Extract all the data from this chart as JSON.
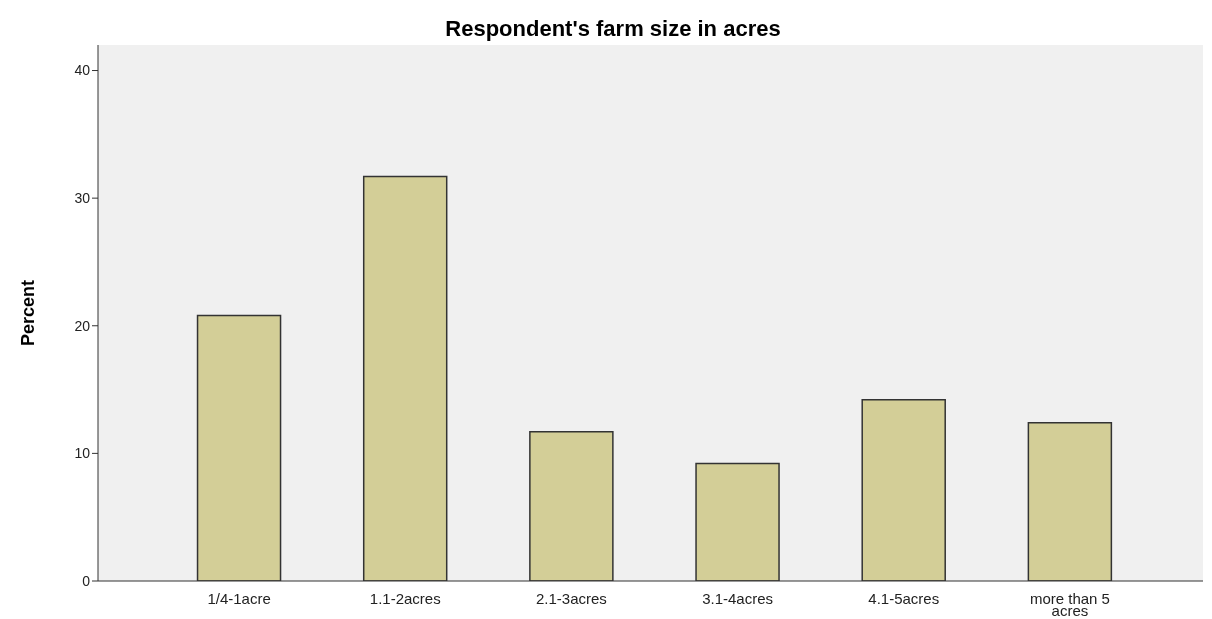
{
  "chart_data": {
    "type": "bar",
    "title": "Respondent's farm size in acres",
    "ylabel": "Percent",
    "categories": [
      "1/4-1acre",
      "1.1-2acres",
      "2.1-3acres",
      "3.1-4acres",
      "4.1-5acres",
      "more than 5 acres"
    ],
    "values": [
      20.8,
      31.7,
      11.7,
      9.2,
      14.2,
      12.4
    ],
    "color": "#d3ce97",
    "ylim": [
      0,
      42
    ],
    "yticks": [
      0,
      10,
      20,
      30,
      40
    ],
    "grid": false
  }
}
